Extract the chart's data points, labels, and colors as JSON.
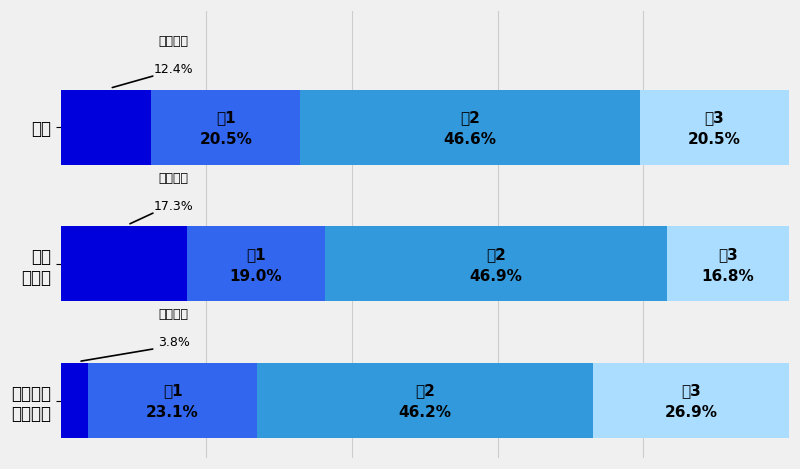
{
  "categories": [
    "全体",
    "中高\n一貫生",
    "高校から\nスタート"
  ],
  "segment_labels": [
    "中学まで",
    "高1",
    "高2",
    "高3"
  ],
  "values": [
    [
      12.4,
      20.5,
      46.6,
      20.5
    ],
    [
      17.3,
      19.0,
      46.9,
      16.8
    ],
    [
      3.8,
      23.1,
      46.2,
      26.9
    ]
  ],
  "colors": {
    "chugaku": "#0000dd",
    "ko1": "#3366ee",
    "ko2": "#3399dd",
    "ko3": "#aaddff",
    "background": "#f0f0f0",
    "grid": "#cccccc",
    "white": "#ffffff"
  },
  "bar_height": 0.55,
  "figsize": [
    8.0,
    4.69
  ],
  "dpi": 100,
  "annotation_fontsize": 9,
  "label_fontsize": 11,
  "ylabel_fontsize": 12
}
